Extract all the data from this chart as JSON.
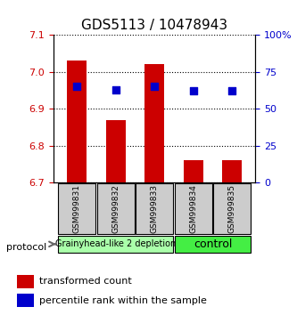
{
  "title": "GDS5113 / 10478943",
  "samples": [
    "GSM999831",
    "GSM999832",
    "GSM999833",
    "GSM999834",
    "GSM999835"
  ],
  "bar_values": [
    7.03,
    6.87,
    7.02,
    6.76,
    6.76
  ],
  "bar_bottom": 6.7,
  "percentile_values": [
    65,
    63,
    65,
    62,
    62
  ],
  "ylim_left": [
    6.7,
    7.1
  ],
  "ylim_right": [
    0,
    100
  ],
  "yticks_left": [
    6.7,
    6.8,
    6.9,
    7.0,
    7.1
  ],
  "yticks_right": [
    0,
    25,
    50,
    75,
    100
  ],
  "ytick_labels_right": [
    "0",
    "25",
    "50",
    "75",
    "100%"
  ],
  "bar_color": "#cc0000",
  "dot_color": "#0000cc",
  "grid_color": "#000000",
  "groups": [
    {
      "label": "Grainyhead-like 2 depletion",
      "samples": [
        0,
        1,
        2
      ],
      "color": "#aaffaa",
      "fontsize": 7
    },
    {
      "label": "control",
      "samples": [
        3,
        4
      ],
      "color": "#44ee44",
      "fontsize": 9
    }
  ],
  "protocol_label": "protocol",
  "legend_items": [
    {
      "color": "#cc0000",
      "label": "transformed count"
    },
    {
      "color": "#0000cc",
      "label": "percentile rank within the sample"
    }
  ],
  "bg_color": "#ffffff",
  "sample_bg_color": "#cccccc",
  "bar_width": 0.5,
  "dot_size": 40,
  "title_fontsize": 11,
  "tick_fontsize": 8,
  "label_fontsize": 8
}
